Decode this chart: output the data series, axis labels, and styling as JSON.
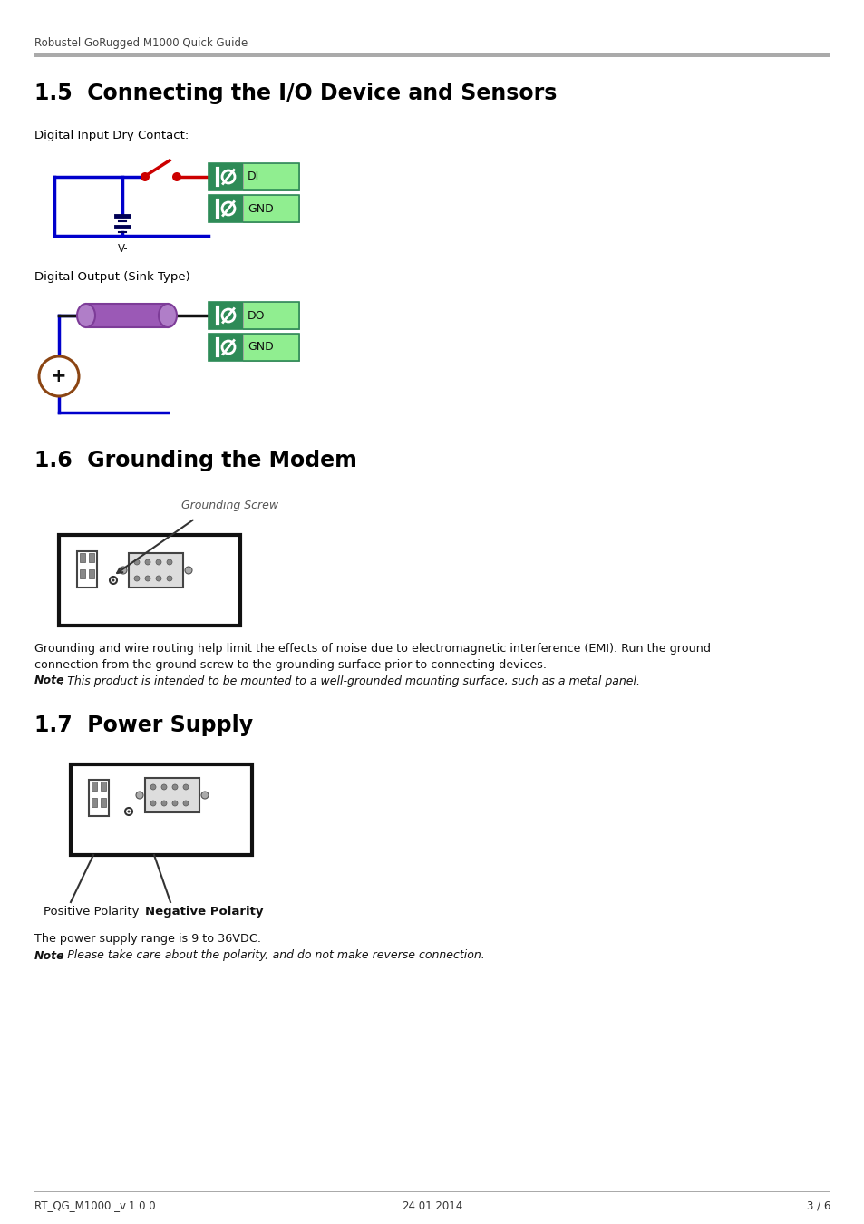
{
  "bg_color": "#ffffff",
  "header_text": "Robustel GoRugged M1000 Quick Guide",
  "header_line_color": "#aaaaaa",
  "footer_left": "RT_QG_M1000 _v.1.0.0",
  "footer_center": "24.01.2014",
  "footer_right": "3 / 6",
  "section_15_title": "1.5  Connecting the I/O Device and Sensors",
  "section_16_title": "1.6  Grounding the Modem",
  "section_17_title": "1.7  Power Supply",
  "digital_input_label": "Digital Input Dry Contact:",
  "digital_output_label": "Digital Output (Sink Type)",
  "grounding_text1": "Grounding and wire routing help limit the effects of noise due to electromagnetic interference (EMI). Run the ground",
  "grounding_text2": "connection from the ground screw to the grounding surface prior to connecting devices.",
  "grounding_note_bold": "Note",
  "grounding_note_rest": ": This product is intended to be mounted to a well-grounded mounting surface, such as a metal panel.",
  "power_text": "The power supply range is 9 to 36VDC.",
  "power_note_bold": "Note",
  "power_note_rest": ": Please take care about the polarity, and do not make reverse connection.",
  "positive_polarity": "Positive Polarity",
  "negative_polarity": "Negative Polarity",
  "grounding_screw_label": "Grounding Screw",
  "green_dark": "#2e8b57",
  "green_light": "#90ee90",
  "wire_blue": "#0000cc",
  "wire_red": "#cc0000",
  "wire_black": "#111111",
  "component_purple": "#9b59b6",
  "circle_brown": "#8b4513",
  "text_dark": "#111111",
  "header_bar_color": "#aaaaaa",
  "gray_device": "#cccccc",
  "gray_device_stroke": "#333333",
  "note_font_size": 9.0,
  "body_font_size": 9.2,
  "label_font_size": 9.5
}
